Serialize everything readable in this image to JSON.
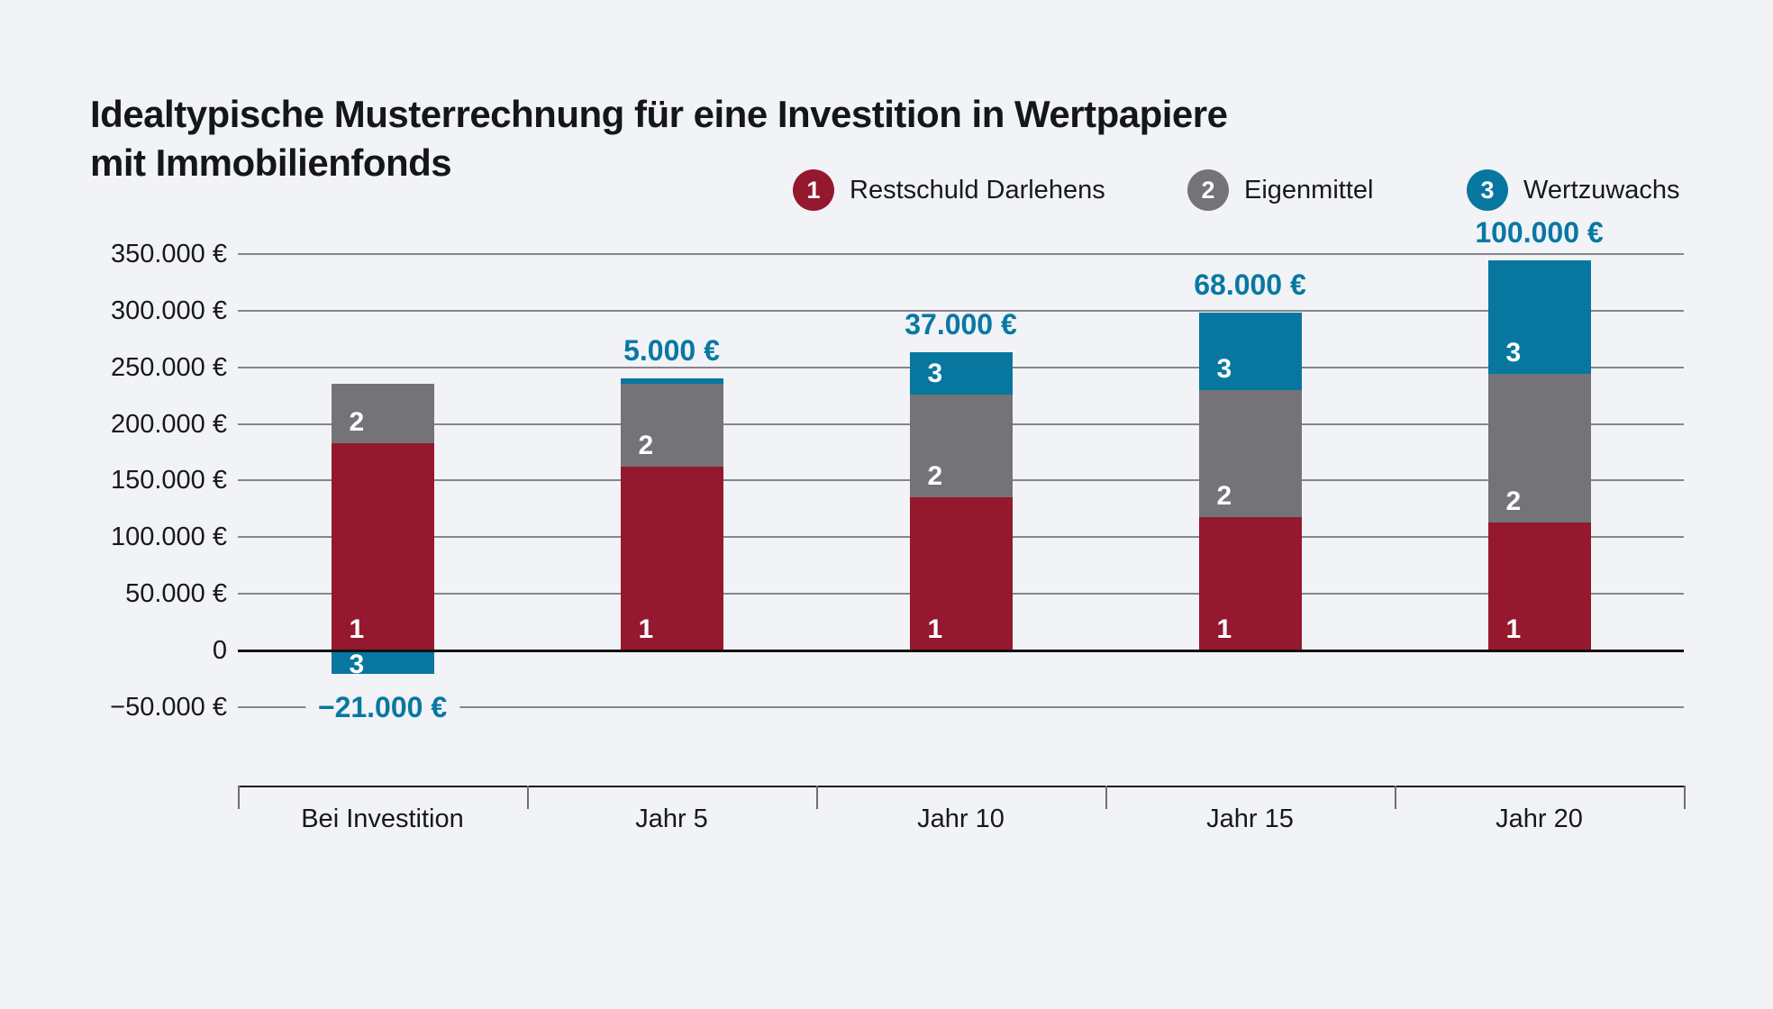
{
  "title": {
    "line1": "Idealtypische Musterrechnung für eine Investition in Wertpapiere",
    "line2": "mit Immobilienfonds"
  },
  "legend": {
    "items": [
      {
        "num": "1",
        "label": "Restschuld Darlehens",
        "color": "#94182e"
      },
      {
        "num": "2",
        "label": "Eigenmittel",
        "color": "#737378"
      },
      {
        "num": "3",
        "label": "Wertzuwachs",
        "color": "#0777a0"
      }
    ]
  },
  "chart_data": {
    "type": "bar",
    "stacked": true,
    "title": "Idealtypische Musterrechnung für eine Investition in Wertpapiere mit Immobilienfonds",
    "categories": [
      "Bei Investition",
      "Jahr 5",
      "Jahr 10",
      "Jahr 15",
      "Jahr 20"
    ],
    "series": [
      {
        "marker": "1",
        "name": "Restschuld Darlehens",
        "color": "#94182e",
        "values": [
          183000,
          162000,
          135000,
          118000,
          113000
        ]
      },
      {
        "marker": "2",
        "name": "Eigenmittel",
        "color": "#737378",
        "values": [
          52000,
          73000,
          91000,
          112000,
          131000
        ]
      },
      {
        "marker": "3",
        "name": "Wertzuwachs",
        "color": "#0777a0",
        "values": [
          -21000,
          5000,
          37000,
          68000,
          100000
        ]
      }
    ],
    "wertzuwachs_value_labels": [
      "−21.000 €",
      "5.000 €",
      "37.000 €",
      "68.000 €",
      "100.000 €"
    ],
    "y_axis": {
      "tick_values": [
        350000,
        300000,
        250000,
        200000,
        150000,
        100000,
        50000,
        0,
        -50000
      ],
      "tick_labels": [
        "350.000 €",
        "300.000 €",
        "250.000 €",
        "200.000 €",
        "150.000 €",
        "100.000 €",
        "50.000 €",
        "0",
        "−50.000 €"
      ],
      "ylim": [
        -50000,
        350000
      ],
      "grid": true
    },
    "legend_position": "top-right",
    "currency": "EUR"
  },
  "colors": {
    "background": "#f2f3f7",
    "restschuld": "#94182e",
    "eigenmittel": "#737378",
    "wertzuwachs": "#0777a0",
    "value_label_text": "#0878a3",
    "grid_line": "#85868d",
    "zero_line": "#121212",
    "text": "#15171b"
  }
}
